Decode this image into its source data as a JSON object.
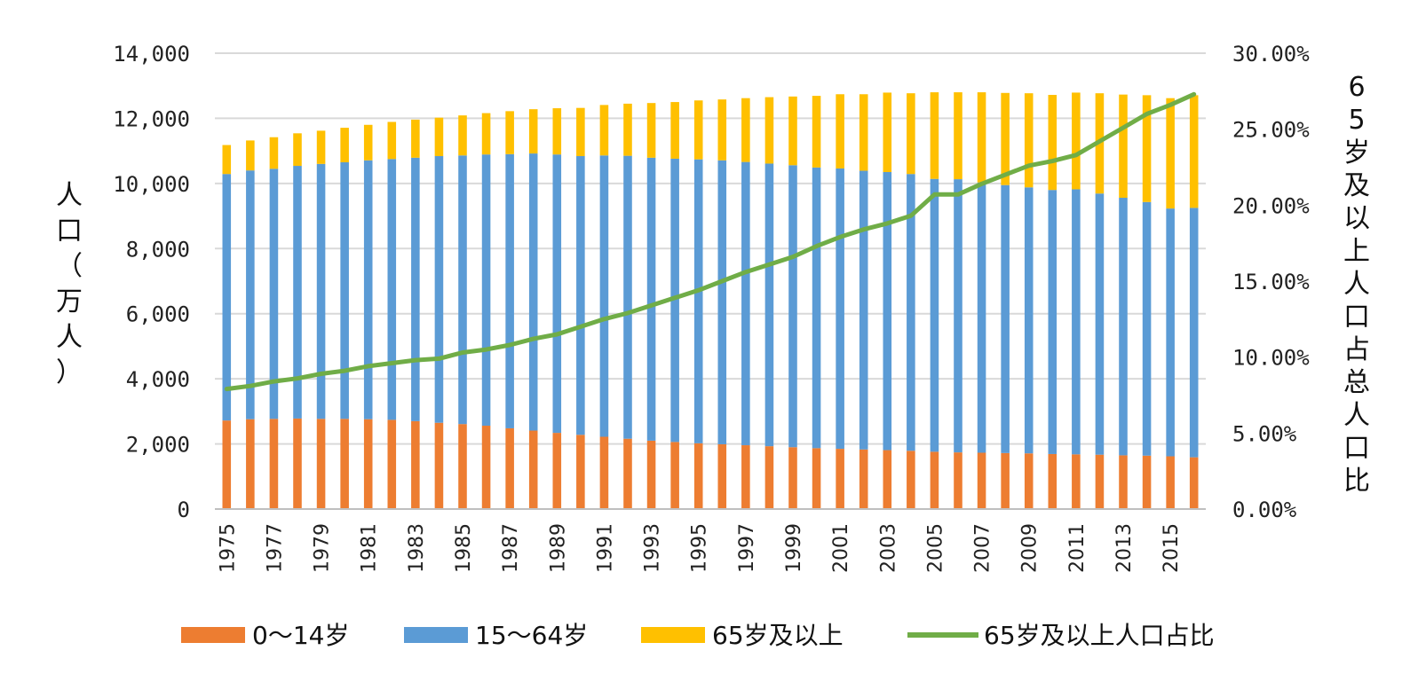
{
  "chart_data": {
    "type": "bar",
    "stacked": true,
    "categories": [
      "1975",
      "1976",
      "1977",
      "1978",
      "1979",
      "1980",
      "1981",
      "1982",
      "1983",
      "1984",
      "1985",
      "1986",
      "1987",
      "1988",
      "1989",
      "1990",
      "1991",
      "1992",
      "1993",
      "1994",
      "1995",
      "1996",
      "1997",
      "1998",
      "1999",
      "2000",
      "2001",
      "2002",
      "2003",
      "2004",
      "2005",
      "2006",
      "2007",
      "2008",
      "2009",
      "2010",
      "2011",
      "2012",
      "2013",
      "2014",
      "2015",
      "2016"
    ],
    "x_tick_labels": [
      "1975",
      "1977",
      "1979",
      "1981",
      "1983",
      "1985",
      "1987",
      "1989",
      "1991",
      "1993",
      "1995",
      "1997",
      "1999",
      "2001",
      "2003",
      "2005",
      "2007",
      "2009",
      "2011",
      "2013",
      "2015"
    ],
    "series": [
      {
        "name": "0～14岁",
        "color": "#ED7D31",
        "axis": "left",
        "values": [
          2720,
          2760,
          2770,
          2780,
          2770,
          2770,
          2760,
          2740,
          2700,
          2650,
          2610,
          2560,
          2480,
          2410,
          2340,
          2280,
          2220,
          2160,
          2100,
          2060,
          2020,
          1990,
          1960,
          1930,
          1900,
          1870,
          1850,
          1830,
          1810,
          1790,
          1760,
          1740,
          1730,
          1720,
          1710,
          1690,
          1680,
          1670,
          1650,
          1640,
          1620,
          1590
        ]
      },
      {
        "name": "15～64岁",
        "color": "#5B9BD5",
        "axis": "left",
        "values": [
          7570,
          7640,
          7680,
          7760,
          7830,
          7880,
          7950,
          8010,
          8090,
          8190,
          8250,
          8330,
          8420,
          8510,
          8550,
          8560,
          8640,
          8690,
          8690,
          8700,
          8720,
          8720,
          8700,
          8680,
          8660,
          8620,
          8610,
          8560,
          8540,
          8500,
          8380,
          8390,
          8300,
          8230,
          8170,
          8110,
          8140,
          8020,
          7910,
          7790,
          7610,
          7660
        ]
      },
      {
        "name": "65岁及以上",
        "color": "#FFC000",
        "axis": "left",
        "values": [
          890,
          920,
          970,
          1000,
          1020,
          1060,
          1090,
          1140,
          1170,
          1180,
          1230,
          1270,
          1320,
          1360,
          1420,
          1480,
          1550,
          1600,
          1680,
          1740,
          1810,
          1870,
          1960,
          2040,
          2110,
          2200,
          2280,
          2350,
          2440,
          2480,
          2660,
          2670,
          2770,
          2830,
          2890,
          2920,
          2970,
          3080,
          3170,
          3280,
          3390,
          3460
        ]
      },
      {
        "name": "65岁及以上人口占比",
        "color": "#70AD47",
        "type": "line",
        "axis": "right",
        "values": [
          7.9,
          8.1,
          8.4,
          8.6,
          8.9,
          9.1,
          9.4,
          9.6,
          9.8,
          9.9,
          10.3,
          10.5,
          10.8,
          11.2,
          11.5,
          12.0,
          12.5,
          12.9,
          13.4,
          13.9,
          14.4,
          15.0,
          15.6,
          16.1,
          16.6,
          17.3,
          17.9,
          18.4,
          18.8,
          19.3,
          20.7,
          20.7,
          21.4,
          22.0,
          22.6,
          22.9,
          23.3,
          24.2,
          25.1,
          26.0,
          26.6,
          27.3
        ]
      }
    ],
    "ylabel": "人口（万人）",
    "y2label": "65岁及以上人口占总人口比",
    "ylim": [
      0,
      14000
    ],
    "y_ticks": [
      0,
      2000,
      4000,
      6000,
      8000,
      10000,
      12000,
      14000
    ],
    "y_tick_labels": [
      "0",
      "2,000",
      "4,000",
      "6,000",
      "8,000",
      "10,000",
      "12,000",
      "14,000"
    ],
    "y2lim": [
      0,
      30
    ],
    "y2_ticks": [
      0,
      5,
      10,
      15,
      20,
      25,
      30
    ],
    "y2_tick_labels": [
      "0.00%",
      "5.00%",
      "10.00%",
      "15.00%",
      "20.00%",
      "25.00%",
      "30.00%"
    ],
    "grid": true,
    "legend_position": "bottom"
  }
}
